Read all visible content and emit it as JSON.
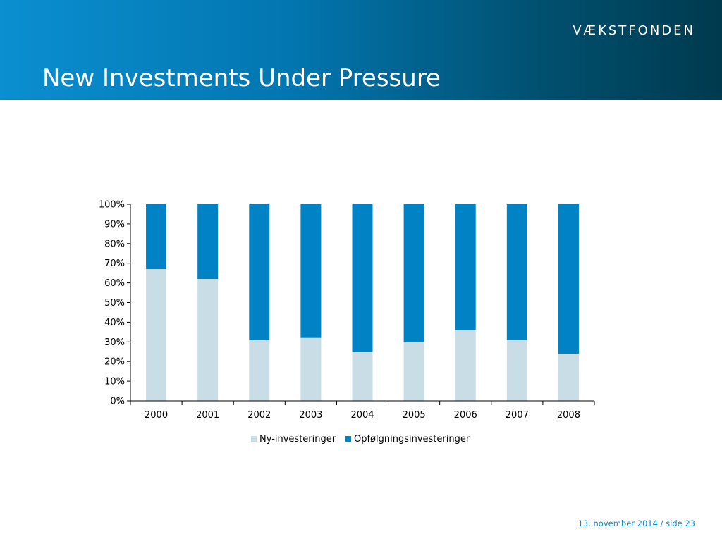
{
  "header": {
    "logo_text": "VÆKSTFONDEN",
    "title": "New Investments Under Pressure"
  },
  "footer": {
    "date": "13. november 2014",
    "separator": " / ",
    "page": "side 23"
  },
  "colors": {
    "ny": "#c9dde7",
    "opf": "#0182c4",
    "axis": "#000000"
  },
  "chart_data": {
    "type": "bar",
    "stacked": true,
    "percent": true,
    "categories": [
      "2000",
      "2001",
      "2002",
      "2003",
      "2004",
      "2005",
      "2006",
      "2007",
      "2008"
    ],
    "series": [
      {
        "name": "Ny-investeringer",
        "values": [
          67,
          62,
          31,
          32,
          25,
          30,
          36,
          31,
          24
        ]
      },
      {
        "name": "Opfølgningsinvesteringer",
        "values": [
          33,
          38,
          69,
          68,
          75,
          70,
          64,
          69,
          76
        ]
      }
    ],
    "yticks": [
      "0%",
      "10%",
      "20%",
      "30%",
      "40%",
      "50%",
      "60%",
      "70%",
      "80%",
      "90%",
      "100%"
    ],
    "ylim": [
      0,
      100
    ],
    "grid": false,
    "legend": "bottom"
  }
}
